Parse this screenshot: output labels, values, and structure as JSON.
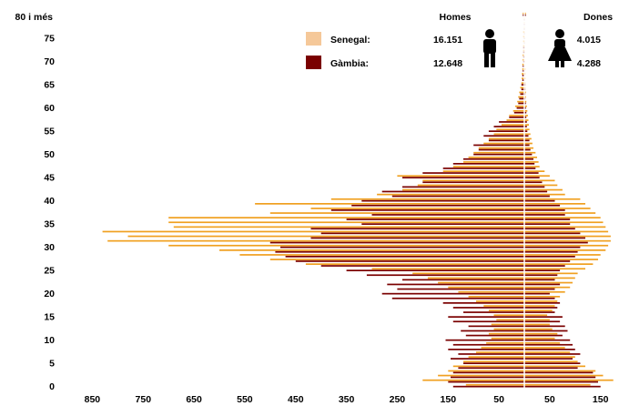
{
  "chart_data": {
    "type": "bar",
    "orientation": "horizontal",
    "subtype": "population-pyramid",
    "y_axis_top_label": "80 i més",
    "y_ticks": [
      0,
      5,
      10,
      15,
      20,
      25,
      30,
      35,
      40,
      45,
      50,
      55,
      60,
      65,
      70,
      75
    ],
    "x_tick_labels": [
      "850",
      "750",
      "650",
      "550",
      "450",
      "350",
      "250",
      "150",
      "50",
      "50",
      "150"
    ],
    "left_header": "Homes",
    "right_header": "Dones",
    "legend": [
      {
        "name": "Senegal:",
        "men_total": "16.151",
        "women_total": "4.015",
        "color": "#f5c899",
        "line_color": "#f0a020"
      },
      {
        "name": "Gàmbia:",
        "men_total": "12.648",
        "women_total": "4.288",
        "color": "#7a0000",
        "line_color": "#7a0000"
      }
    ],
    "ages": [
      0,
      1,
      2,
      3,
      4,
      5,
      6,
      7,
      8,
      9,
      10,
      11,
      12,
      13,
      14,
      15,
      16,
      17,
      18,
      19,
      20,
      21,
      22,
      23,
      24,
      25,
      26,
      27,
      28,
      29,
      30,
      31,
      32,
      33,
      34,
      35,
      36,
      37,
      38,
      39,
      40,
      41,
      42,
      43,
      44,
      45,
      46,
      47,
      48,
      49,
      50,
      51,
      52,
      53,
      54,
      55,
      56,
      57,
      58,
      59,
      60,
      61,
      62,
      63,
      64,
      65,
      66,
      67,
      68,
      69,
      70,
      71,
      72,
      73,
      74,
      75,
      76,
      77,
      78,
      79,
      80
    ],
    "series": [
      {
        "name": "Senegal",
        "men": [
          115,
          200,
          170,
          150,
          140,
          120,
          110,
          95,
          85,
          75,
          65,
          70,
          60,
          65,
          55,
          60,
          70,
          80,
          95,
          110,
          130,
          150,
          170,
          190,
          220,
          300,
          430,
          500,
          560,
          600,
          700,
          820,
          780,
          830,
          690,
          700,
          700,
          500,
          420,
          530,
          380,
          290,
          240,
          210,
          200,
          250,
          160,
          140,
          120,
          110,
          100,
          90,
          80,
          70,
          60,
          55,
          45,
          35,
          30,
          22,
          18,
          14,
          12,
          10,
          8,
          6,
          5,
          5,
          4,
          4,
          3,
          3,
          2,
          2,
          2,
          2,
          2,
          1,
          1,
          1,
          3
        ],
        "women": [
          130,
          175,
          155,
          140,
          120,
          105,
          100,
          90,
          80,
          70,
          60,
          65,
          55,
          50,
          50,
          45,
          55,
          60,
          65,
          70,
          80,
          90,
          95,
          100,
          105,
          120,
          135,
          145,
          150,
          160,
          165,
          170,
          170,
          165,
          160,
          155,
          150,
          140,
          130,
          120,
          110,
          80,
          75,
          65,
          60,
          50,
          40,
          30,
          28,
          25,
          22,
          18,
          16,
          14,
          12,
          10,
          9,
          8,
          7,
          6,
          5,
          4,
          3,
          3,
          2,
          2,
          2,
          2,
          2,
          1,
          1,
          1,
          1,
          1,
          1,
          1,
          1,
          1,
          1,
          1,
          3
        ]
      },
      {
        "name": "Gàmbia",
        "men": [
          140,
          150,
          145,
          140,
          130,
          120,
          145,
          130,
          150,
          140,
          155,
          115,
          125,
          110,
          140,
          150,
          120,
          140,
          160,
          260,
          280,
          250,
          270,
          240,
          310,
          350,
          400,
          450,
          470,
          490,
          480,
          500,
          420,
          400,
          420,
          320,
          350,
          300,
          380,
          340,
          320,
          260,
          280,
          240,
          200,
          240,
          200,
          160,
          140,
          120,
          100,
          90,
          100,
          70,
          80,
          70,
          60,
          50,
          30,
          20,
          15,
          12,
          10,
          8,
          6,
          6,
          4,
          4,
          3,
          3,
          2,
          2,
          2,
          2,
          1,
          1,
          1,
          1,
          1,
          1,
          3
        ],
        "women": [
          150,
          145,
          140,
          135,
          105,
          110,
          95,
          110,
          100,
          95,
          90,
          75,
          85,
          80,
          70,
          75,
          60,
          65,
          70,
          60,
          50,
          60,
          70,
          60,
          65,
          70,
          80,
          90,
          100,
          105,
          110,
          125,
          120,
          110,
          100,
          90,
          90,
          80,
          80,
          70,
          60,
          50,
          45,
          40,
          35,
          30,
          28,
          22,
          20,
          18,
          15,
          12,
          10,
          10,
          8,
          6,
          5,
          5,
          4,
          4,
          3,
          3,
          2,
          2,
          2,
          2,
          1,
          1,
          1,
          1,
          1,
          1,
          1,
          1,
          1,
          1,
          1,
          1,
          1,
          1,
          3
        ]
      }
    ]
  }
}
